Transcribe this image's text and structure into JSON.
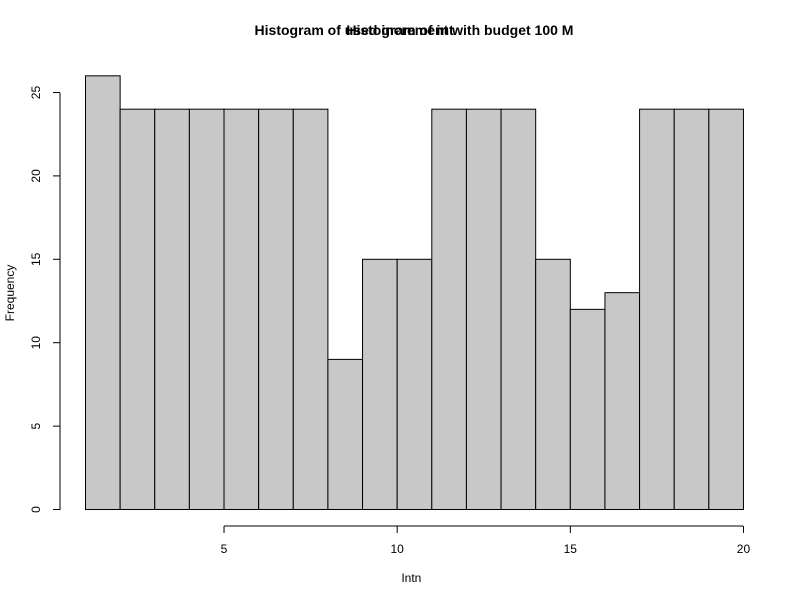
{
  "chart_data": {
    "type": "bar",
    "titles": [
      "Histogram of used increment with budget  100 M",
      "Histogram of int"
    ],
    "xlabels": [
      "Int",
      "n"
    ],
    "ylabel": "Frequency",
    "bins": [
      [
        1,
        2
      ],
      [
        2,
        3
      ],
      [
        3,
        4
      ],
      [
        4,
        5
      ],
      [
        5,
        6
      ],
      [
        6,
        7
      ],
      [
        7,
        8
      ],
      [
        8,
        9
      ],
      [
        9,
        10
      ],
      [
        10,
        11
      ],
      [
        11,
        12
      ],
      [
        12,
        13
      ],
      [
        13,
        14
      ],
      [
        14,
        15
      ],
      [
        15,
        16
      ],
      [
        16,
        17
      ],
      [
        17,
        18
      ],
      [
        18,
        19
      ],
      [
        19,
        20
      ]
    ],
    "values": [
      26,
      24,
      24,
      24,
      24,
      24,
      24,
      9,
      15,
      15,
      24,
      24,
      24,
      15,
      12,
      13,
      24,
      24,
      24
    ],
    "xlim": [
      1,
      20
    ],
    "ylim": [
      0,
      26
    ],
    "xticks": [
      5,
      10,
      15,
      20
    ],
    "yticks": [
      0,
      5,
      10,
      15,
      20,
      25
    ],
    "bar_color": "#c8c8c8",
    "grid": false,
    "legend": "none"
  }
}
